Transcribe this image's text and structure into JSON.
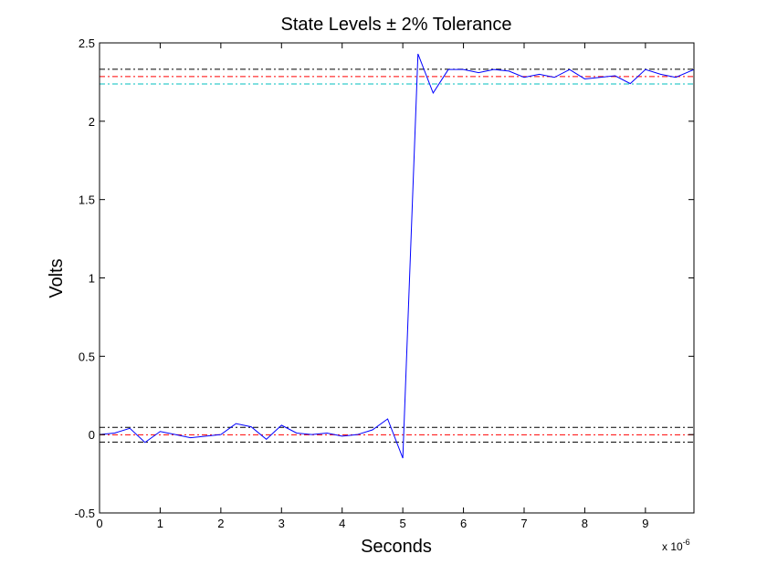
{
  "chart_data": {
    "type": "line",
    "title": "State Levels ± 2% Tolerance",
    "xlabel": "Seconds",
    "ylabel": "Volts",
    "x_exponent_label": "x 10",
    "x_exponent_power": "-6",
    "xlim": [
      0,
      9.8
    ],
    "ylim": [
      -0.5,
      2.5
    ],
    "x_ticks": [
      0,
      1,
      2,
      3,
      4,
      5,
      6,
      7,
      8,
      9
    ],
    "x_tick_labels": [
      "0",
      "1",
      "2",
      "3",
      "4",
      "5",
      "6",
      "7",
      "8",
      "9"
    ],
    "y_ticks": [
      -0.5,
      0,
      0.5,
      1,
      1.5,
      2,
      2.5
    ],
    "y_tick_labels": [
      "-0.5",
      "0",
      "0.5",
      "1",
      "1.5",
      "2",
      "2.5"
    ],
    "grid": false,
    "box": true,
    "series": [
      {
        "color": "#0000ff",
        "style": "solid",
        "x": [
          0,
          0.25,
          0.5,
          0.75,
          1.0,
          1.25,
          1.5,
          1.75,
          2.0,
          2.25,
          2.5,
          2.75,
          3.0,
          3.25,
          3.5,
          3.75,
          4.0,
          4.25,
          4.5,
          4.75,
          5.0,
          5.25,
          5.5,
          5.75,
          6.0,
          6.25,
          6.5,
          6.75,
          7.0,
          7.25,
          7.5,
          7.75,
          8.0,
          8.25,
          8.5,
          8.75,
          9.0,
          9.25,
          9.5,
          9.8
        ],
        "y": [
          0.0,
          0.01,
          0.04,
          -0.05,
          0.02,
          0.0,
          -0.02,
          -0.01,
          0.0,
          0.07,
          0.05,
          -0.03,
          0.06,
          0.01,
          0.0,
          0.01,
          -0.01,
          0.0,
          0.03,
          0.1,
          -0.15,
          2.43,
          2.18,
          2.33,
          2.33,
          2.31,
          2.33,
          2.32,
          2.28,
          2.3,
          2.28,
          2.33,
          2.27,
          2.28,
          2.29,
          2.24,
          2.33,
          2.3,
          2.28,
          2.33
        ]
      }
    ],
    "reference_lines": [
      {
        "y": 2.332,
        "color": "#000000",
        "style": "dashdot"
      },
      {
        "y": 2.285,
        "color": "#ff0000",
        "style": "dashdot"
      },
      {
        "y": 2.238,
        "color": "#00bfbf",
        "style": "dashdot"
      },
      {
        "y": 0.046,
        "color": "#000000",
        "style": "dashdot"
      },
      {
        "y": -0.001,
        "color": "#ff0000",
        "style": "dashdot"
      },
      {
        "y": -0.048,
        "color": "#000000",
        "style": "dashdot"
      }
    ]
  }
}
